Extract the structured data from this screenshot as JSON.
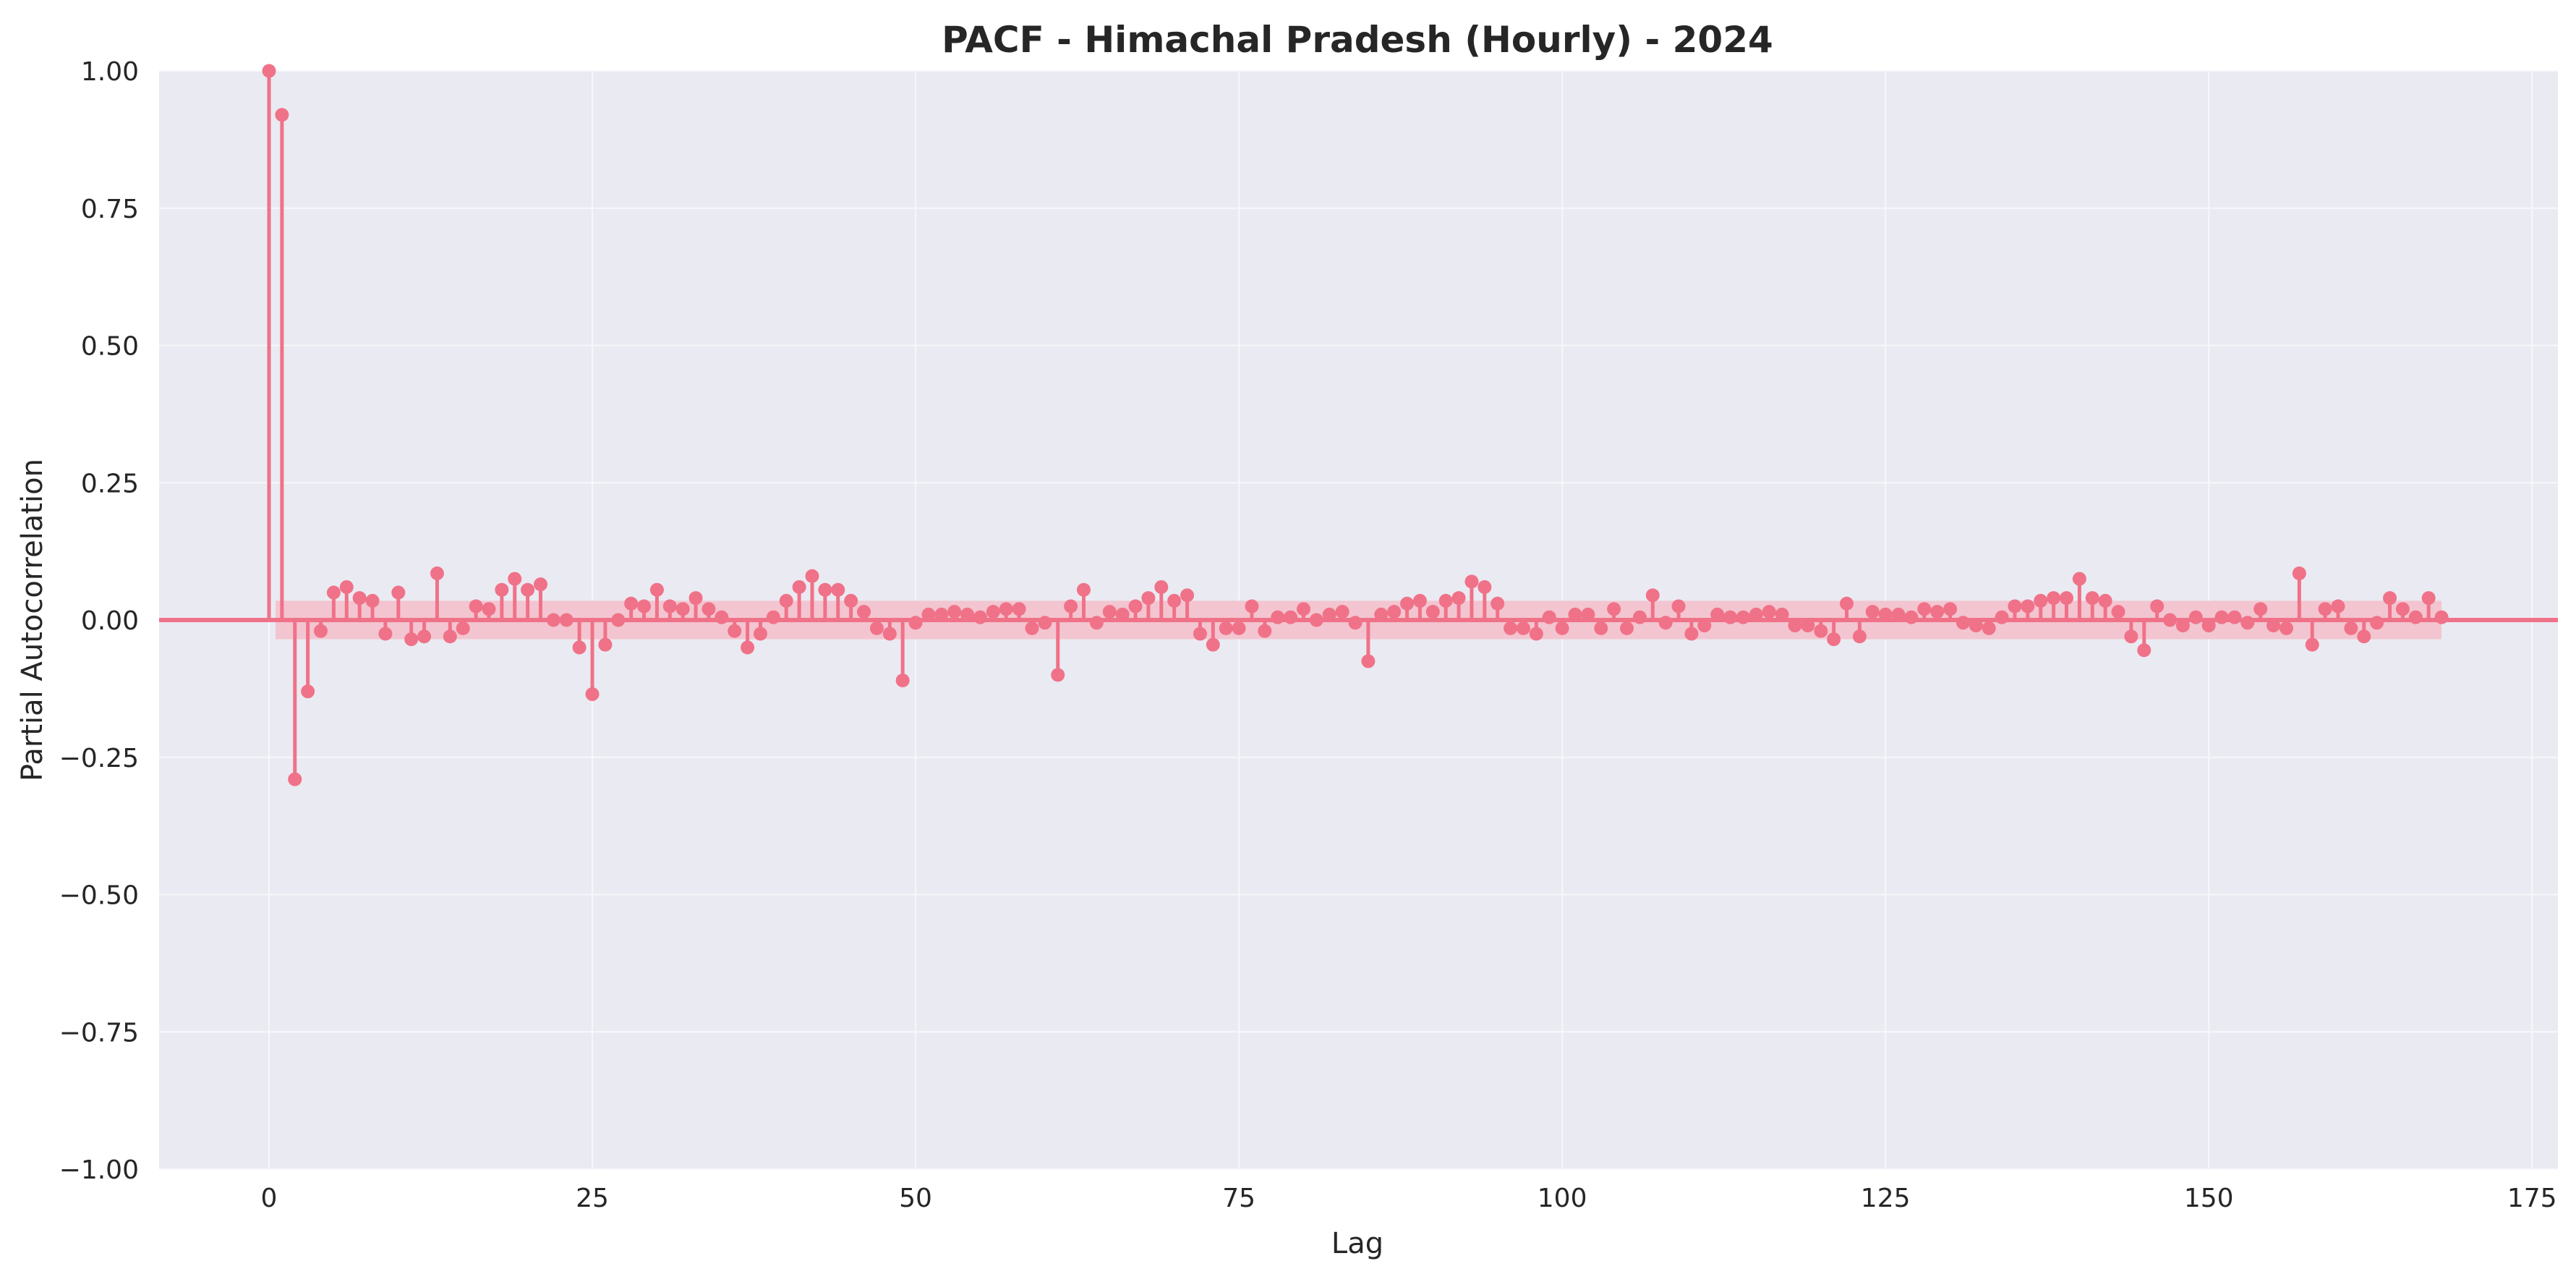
{
  "chart_data": {
    "type": "stem",
    "title": "PACF - Himachal Pradesh (Hourly) - 2024",
    "xlabel": "Lag",
    "ylabel": "Partial Autocorrelation",
    "xlim": [
      -8.5,
      177
    ],
    "ylim": [
      -1.0,
      1.0
    ],
    "xticks": [
      0,
      25,
      50,
      75,
      100,
      125,
      150,
      175
    ],
    "xtick_labels": [
      "0",
      "25",
      "50",
      "75",
      "100",
      "125",
      "150",
      "175"
    ],
    "yticks": [
      1.0,
      0.75,
      0.5,
      0.25,
      0.0,
      -0.25,
      -0.5,
      -0.75,
      -1.0
    ],
    "ytick_labels": [
      "1.00",
      "0.75",
      "0.50",
      "0.25",
      "0.00",
      "−0.25",
      "−0.50",
      "−0.75",
      "−1.00"
    ],
    "grid": true,
    "confidence_band": [
      -0.035,
      0.035
    ],
    "x": [
      0,
      1,
      2,
      3,
      4,
      5,
      6,
      7,
      8,
      9,
      10,
      11,
      12,
      13,
      14,
      15,
      16,
      17,
      18,
      19,
      20,
      21,
      22,
      23,
      24,
      25,
      26,
      27,
      28,
      29,
      30,
      31,
      32,
      33,
      34,
      35,
      36,
      37,
      38,
      39,
      40,
      41,
      42,
      43,
      44,
      45,
      46,
      47,
      48,
      49,
      50,
      51,
      52,
      53,
      54,
      55,
      56,
      57,
      58,
      59,
      60,
      61,
      62,
      63,
      64,
      65,
      66,
      67,
      68,
      69,
      70,
      71,
      72,
      73,
      74,
      75,
      76,
      77,
      78,
      79,
      80,
      81,
      82,
      83,
      84,
      85,
      86,
      87,
      88,
      89,
      90,
      91,
      92,
      93,
      94,
      95,
      96,
      97,
      98,
      99,
      100,
      101,
      102,
      103,
      104,
      105,
      106,
      107,
      108,
      109,
      110,
      111,
      112,
      113,
      114,
      115,
      116,
      117,
      118,
      119,
      120,
      121,
      122,
      123,
      124,
      125,
      126,
      127,
      128,
      129,
      130,
      131,
      132,
      133,
      134,
      135,
      136,
      137,
      138,
      139,
      140,
      141,
      142,
      143,
      144,
      145,
      146,
      147,
      148,
      149,
      150,
      151,
      152,
      153,
      154,
      155,
      156,
      157,
      158,
      159,
      160,
      161,
      162,
      163,
      164,
      165,
      166,
      167,
      168
    ],
    "values": [
      1.0,
      0.92,
      -0.29,
      -0.13,
      -0.02,
      0.05,
      0.06,
      0.04,
      0.035,
      -0.025,
      0.05,
      -0.035,
      -0.03,
      0.085,
      -0.03,
      -0.015,
      0.025,
      0.02,
      0.055,
      0.075,
      0.055,
      0.065,
      0.0,
      0.0,
      -0.05,
      -0.135,
      -0.045,
      0.0,
      0.03,
      0.025,
      0.055,
      0.025,
      0.02,
      0.04,
      0.02,
      0.005,
      -0.02,
      -0.05,
      -0.025,
      0.005,
      0.035,
      0.06,
      0.08,
      0.055,
      0.055,
      0.035,
      0.015,
      -0.015,
      -0.025,
      -0.11,
      -0.005,
      0.01,
      0.01,
      0.015,
      0.01,
      0.005,
      0.015,
      0.02,
      0.02,
      -0.015,
      -0.005,
      -0.1,
      0.025,
      0.055,
      -0.005,
      0.015,
      0.01,
      0.025,
      0.04,
      0.06,
      0.035,
      0.045,
      -0.025,
      -0.045,
      -0.015,
      -0.015,
      0.025,
      -0.02,
      0.005,
      0.005,
      0.02,
      0.0,
      0.01,
      0.015,
      -0.005,
      -0.075,
      0.01,
      0.015,
      0.03,
      0.035,
      0.015,
      0.035,
      0.04,
      0.07,
      0.06,
      0.03,
      -0.015,
      -0.015,
      -0.025,
      0.005,
      -0.015,
      0.01,
      0.01,
      -0.015,
      0.02,
      -0.015,
      0.005,
      0.045,
      -0.005,
      0.025,
      -0.025,
      -0.01,
      0.01,
      0.005,
      0.005,
      0.01,
      0.015,
      0.01,
      -0.01,
      -0.01,
      -0.02,
      -0.035,
      0.03,
      -0.03,
      0.015,
      0.01,
      0.01,
      0.005,
      0.02,
      0.015,
      0.02,
      -0.005,
      -0.01,
      -0.015,
      0.005,
      0.025,
      0.025,
      0.035,
      0.04,
      0.04,
      0.075,
      0.04,
      0.035,
      0.015,
      -0.03,
      -0.055,
      0.025,
      0.0,
      -0.01,
      0.005,
      -0.01,
      0.005,
      0.005,
      -0.005,
      0.02,
      -0.01,
      -0.015,
      0.085,
      -0.045,
      0.02,
      0.025,
      -0.015,
      -0.03,
      -0.005,
      0.04,
      0.02,
      0.005,
      0.04,
      0.005
    ],
    "colors": {
      "stem": "#f07288",
      "band": "#f3c5d0",
      "plot_bg": "#eaeaf2",
      "grid": "#f7f7fb",
      "text": "#262626"
    }
  }
}
